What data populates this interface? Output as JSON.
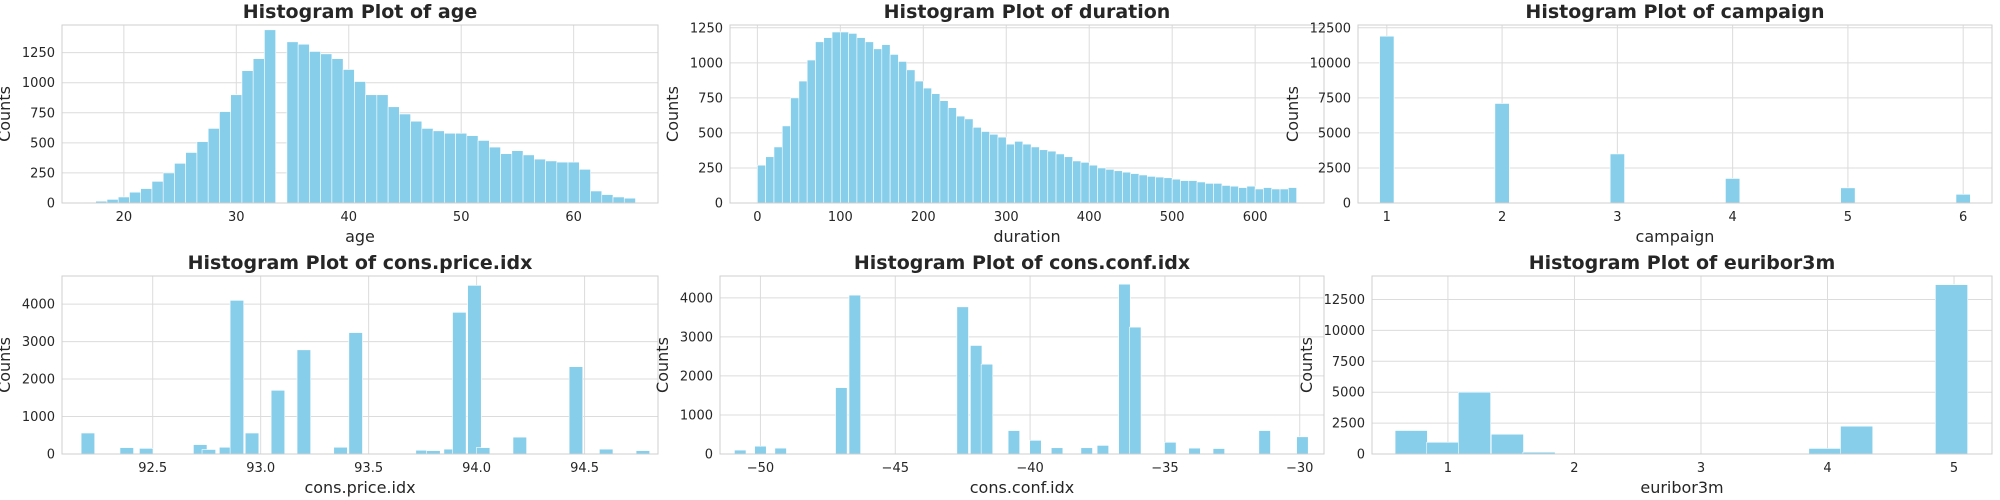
{
  "colors": {
    "bar": "#87ceeb",
    "grid": "#dcdcdc",
    "text": "#262626"
  },
  "chart_data": [
    {
      "type": "bar",
      "title": "Histogram Plot of age",
      "xlabel": "age",
      "ylabel": "Counts",
      "xlim": [
        14.5,
        67.5
      ],
      "ylim": [
        0,
        1480
      ],
      "xticks": [
        20,
        30,
        40,
        50,
        60
      ],
      "xticklabels": [
        "20",
        "30",
        "40",
        "50",
        "60"
      ],
      "yticks": [
        0,
        250,
        500,
        750,
        1000,
        1250
      ],
      "yticklabels": [
        "0",
        "250",
        "500",
        "750",
        "1000",
        "1250"
      ],
      "x": [
        17,
        18,
        19,
        20,
        21,
        22,
        23,
        24,
        25,
        26,
        27,
        28,
        29,
        30,
        31,
        32,
        33,
        35,
        36,
        37,
        38,
        39,
        40,
        41,
        42,
        43,
        44,
        45,
        46,
        47,
        48,
        49,
        50,
        51,
        52,
        53,
        54,
        55,
        56,
        57,
        58,
        59,
        60,
        61,
        62,
        63,
        64,
        65
      ],
      "bin_width": 1,
      "values": [
        5,
        15,
        30,
        50,
        90,
        120,
        180,
        250,
        330,
        420,
        510,
        620,
        760,
        900,
        1100,
        1200,
        1440,
        1340,
        1320,
        1260,
        1240,
        1200,
        1110,
        1010,
        900,
        900,
        800,
        740,
        680,
        620,
        600,
        580,
        580,
        560,
        520,
        465,
        410,
        435,
        400,
        365,
        350,
        340,
        340,
        280,
        100,
        70,
        50,
        40
      ]
    },
    {
      "type": "bar",
      "title": "Histogram Plot of duration",
      "xlabel": "duration",
      "ylabel": "Counts",
      "xlim": [
        -33,
        683
      ],
      "ylim": [
        0,
        1270
      ],
      "xticks": [
        0,
        100,
        200,
        300,
        400,
        500,
        600
      ],
      "xticklabels": [
        "0",
        "100",
        "200",
        "300",
        "400",
        "500",
        "600"
      ],
      "yticks": [
        0,
        250,
        500,
        750,
        1000,
        1250
      ],
      "yticklabels": [
        "0",
        "250",
        "500",
        "750",
        "1000",
        "1250"
      ],
      "x": [
        5,
        15,
        25,
        35,
        45,
        55,
        65,
        75,
        85,
        95,
        105,
        115,
        125,
        135,
        145,
        155,
        165,
        175,
        185,
        195,
        205,
        215,
        225,
        235,
        245,
        255,
        265,
        275,
        285,
        295,
        305,
        315,
        325,
        335,
        345,
        355,
        365,
        375,
        385,
        395,
        405,
        415,
        425,
        435,
        445,
        455,
        465,
        475,
        485,
        495,
        505,
        515,
        525,
        535,
        545,
        555,
        565,
        575,
        585,
        595,
        605,
        615,
        625,
        635,
        645
      ],
      "bin_width": 10,
      "values": [
        270,
        330,
        400,
        550,
        750,
        870,
        1020,
        1150,
        1180,
        1220,
        1220,
        1210,
        1180,
        1150,
        1100,
        1130,
        1060,
        1010,
        950,
        870,
        820,
        780,
        730,
        680,
        620,
        600,
        540,
        510,
        490,
        470,
        420,
        440,
        420,
        400,
        380,
        370,
        350,
        330,
        300,
        290,
        270,
        250,
        240,
        230,
        220,
        210,
        200,
        190,
        185,
        180,
        170,
        160,
        160,
        150,
        140,
        140,
        125,
        120,
        110,
        120,
        100,
        110,
        100,
        100,
        110
      ]
    },
    {
      "type": "bar",
      "title": "Histogram Plot of campaign",
      "xlabel": "campaign",
      "ylabel": "Counts",
      "xlim": [
        0.75,
        6.25
      ],
      "ylim": [
        0,
        12700
      ],
      "xticks": [
        1,
        2,
        3,
        4,
        5,
        6
      ],
      "xticklabels": [
        "1",
        "2",
        "3",
        "4",
        "5",
        "6"
      ],
      "yticks": [
        0,
        2500,
        5000,
        7500,
        10000,
        12500
      ],
      "yticklabels": [
        "0",
        "2500",
        "5000",
        "7500",
        "10000",
        "12500"
      ],
      "x": [
        1,
        2,
        3,
        4,
        5,
        6
      ],
      "bin_width": 0.125,
      "values": [
        11900,
        7100,
        3500,
        1750,
        1080,
        620
      ]
    },
    {
      "type": "bar",
      "title": "Histogram Plot of cons.price.idx",
      "xlabel": "cons.price.idx",
      "ylabel": "Counts",
      "xlim": [
        92.08,
        94.84
      ],
      "ylim": [
        0,
        4750
      ],
      "xticks": [
        92.5,
        93.0,
        93.5,
        94.0,
        94.5
      ],
      "xticklabels": [
        "92.5",
        "93.0",
        "93.5",
        "94.0",
        "94.5"
      ],
      "yticks": [
        0,
        1000,
        2000,
        3000,
        4000
      ],
      "yticklabels": [
        "0",
        "1000",
        "2000",
        "3000",
        "4000"
      ],
      "x": [
        92.2,
        92.38,
        92.47,
        92.72,
        92.76,
        92.84,
        92.89,
        92.96,
        93.08,
        93.2,
        93.37,
        93.44,
        93.75,
        93.8,
        93.88,
        93.92,
        93.99,
        94.03,
        94.2,
        94.46,
        94.6,
        94.77
      ],
      "bin_width": 0.063,
      "values": [
        560,
        170,
        150,
        250,
        120,
        180,
        4100,
        560,
        1700,
        2780,
        180,
        3240,
        100,
        90,
        130,
        3780,
        4500,
        170,
        450,
        2330,
        130,
        90
      ]
    },
    {
      "type": "bar",
      "title": "Histogram Plot of cons.conf.idx",
      "xlabel": "cons.conf.idx",
      "ylabel": "Counts",
      "xlim": [
        -51.5,
        -29.1
      ],
      "ylim": [
        0,
        4560
      ],
      "xticks": [
        -50,
        -45,
        -40,
        -35,
        -30
      ],
      "xticklabels": [
        "−50",
        "−45",
        "−40",
        "−35",
        "−30"
      ],
      "yticks": [
        0,
        1000,
        2000,
        3000,
        4000
      ],
      "yticklabels": [
        "0",
        "1000",
        "2000",
        "3000",
        "4000"
      ],
      "x": [
        -50.75,
        -50.0,
        -49.25,
        -47.0,
        -46.5,
        -42.5,
        -42.0,
        -41.6,
        -40.6,
        -39.8,
        -39.0,
        -37.9,
        -37.3,
        -36.5,
        -36.1,
        -34.8,
        -33.9,
        -33.0,
        -31.3,
        -29.9
      ],
      "bin_width": 0.43,
      "values": [
        100,
        200,
        150,
        1700,
        4070,
        3770,
        2780,
        2300,
        600,
        350,
        160,
        160,
        220,
        4350,
        3250,
        300,
        150,
        140,
        600,
        440
      ]
    },
    {
      "type": "bar",
      "title": "Histogram Plot of euribor3m",
      "xlabel": "euribor3m",
      "ylabel": "Counts",
      "xlim": [
        0.4,
        5.3
      ],
      "ylim": [
        0,
        14400
      ],
      "xticks": [
        1,
        2,
        3,
        4,
        5
      ],
      "xticklabels": [
        "1",
        "2",
        "3",
        "4",
        "5"
      ],
      "yticks": [
        0,
        2500,
        5000,
        7500,
        10000,
        12500
      ],
      "yticklabels": [
        "0",
        "2500",
        "5000",
        "7500",
        "10000",
        "12500"
      ],
      "x": [
        0.71,
        0.96,
        1.21,
        1.47,
        1.72,
        3.98,
        4.23,
        4.98
      ],
      "bin_width": 0.255,
      "values": [
        1900,
        950,
        5000,
        1600,
        150,
        450,
        2250,
        13700
      ]
    }
  ]
}
